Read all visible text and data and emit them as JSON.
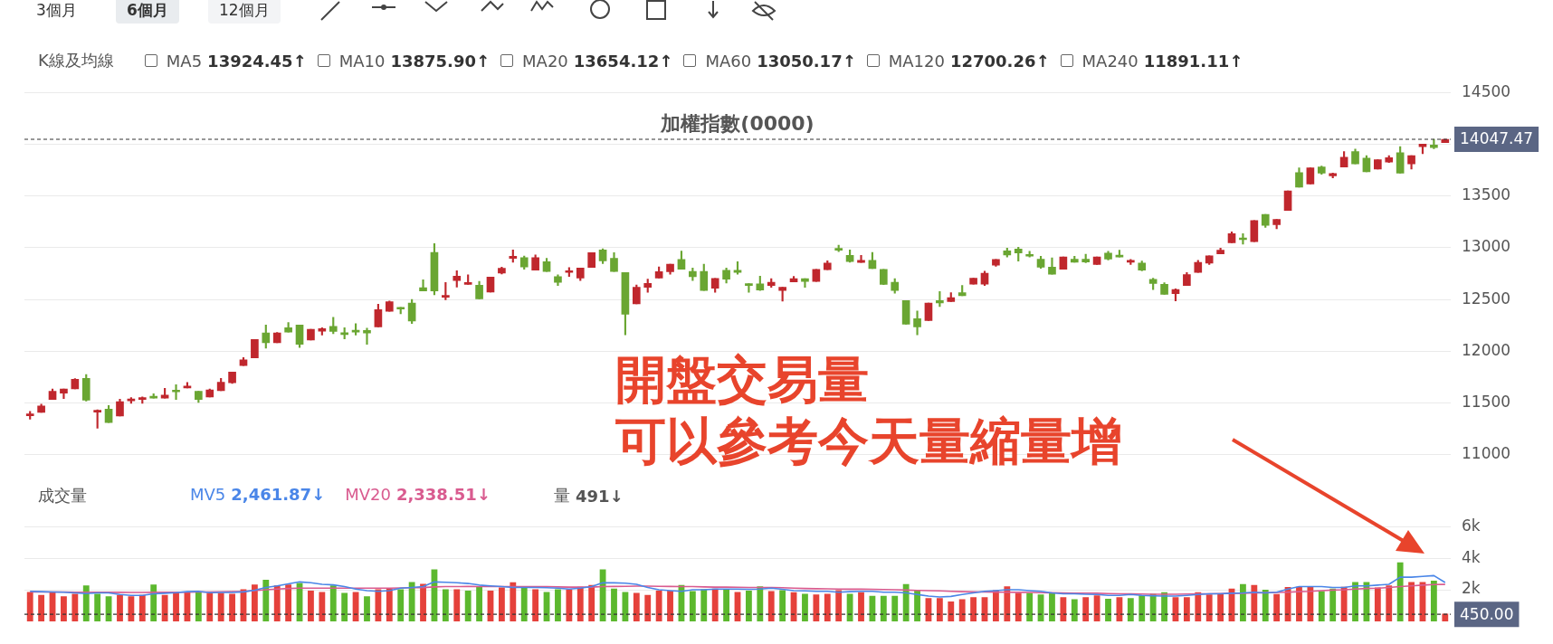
{
  "chart_data": [
    {
      "type": "other",
      "annotations": [
        "3個月",
        "6個月",
        "12個月"
      ]
    },
    {
      "type": "candlestick",
      "title": "加權指數(0000)",
      "annotations": [
        "K線及均線",
        "MA5 13924.45↑",
        "MA10 13875.90↑",
        "MA20 13654.12↑",
        "MA60 13050.17↑",
        "MA120 12700.26↑",
        "MA240 11891.11↑",
        "開盤交易量",
        "可以參考今天量縮量增"
      ],
      "categories": [
        null,
        null,
        null,
        null,
        null,
        null,
        null,
        null,
        null,
        null,
        null,
        null,
        null,
        null,
        null,
        null,
        null,
        null,
        null,
        null,
        null,
        null,
        null,
        null,
        null,
        null,
        null,
        null,
        null,
        null,
        null,
        null,
        null,
        null,
        null,
        null,
        null,
        null,
        null,
        null,
        null,
        null,
        null,
        null,
        null,
        null,
        null,
        null,
        null,
        null,
        null,
        null,
        null,
        null,
        null,
        null,
        null,
        null,
        null,
        null,
        null,
        null,
        null,
        null,
        null,
        null,
        null,
        null,
        null,
        null,
        null,
        null,
        null,
        null,
        null,
        null,
        null,
        null,
        null,
        null,
        null,
        null,
        null,
        null,
        null,
        null,
        null,
        null,
        null,
        null,
        null,
        null,
        null,
        null,
        null,
        null,
        null,
        null,
        null,
        null,
        null,
        null,
        null,
        null,
        null,
        null,
        null,
        null,
        null,
        null,
        null,
        null,
        null,
        null,
        null,
        null,
        null,
        null,
        null,
        null,
        null,
        null,
        null,
        null,
        null,
        null,
        null
      ],
      "ohlc": [
        [
          11377,
          11420,
          11343,
          11389
        ],
        [
          11410,
          11488,
          11410,
          11472
        ],
        [
          11534,
          11636,
          11534,
          11614
        ],
        [
          11596,
          11636,
          11543,
          11636
        ],
        [
          11636,
          11735,
          11636,
          11729
        ],
        [
          11738,
          11775,
          11519,
          11528
        ],
        [
          11411,
          11435,
          11256,
          11429
        ],
        [
          11442,
          11475,
          11312,
          11312
        ],
        [
          11374,
          11537,
          11374,
          11513
        ],
        [
          11522,
          11553,
          11497,
          11540
        ],
        [
          11534,
          11559,
          11497,
          11553
        ],
        [
          11565,
          11590,
          11547,
          11547
        ],
        [
          11547,
          11642,
          11547,
          11577
        ],
        [
          11620,
          11676,
          11534,
          11608
        ],
        [
          11645,
          11698,
          11645,
          11663
        ],
        [
          11614,
          11614,
          11506,
          11534
        ],
        [
          11559,
          11636,
          11559,
          11627
        ],
        [
          11620,
          11738,
          11620,
          11701
        ],
        [
          11695,
          11800,
          11690,
          11800
        ],
        [
          11861,
          11938,
          11861,
          11917
        ],
        [
          11935,
          12114,
          11935,
          12114
        ],
        [
          12176,
          12253,
          12031,
          12083
        ],
        [
          12083,
          12182,
          12083,
          12176
        ],
        [
          12228,
          12278,
          12185,
          12185
        ],
        [
          12253,
          12253,
          12037,
          12068
        ],
        [
          12108,
          12213,
          12108,
          12213
        ],
        [
          12194,
          12228,
          12157,
          12219
        ],
        [
          12241,
          12327,
          12170,
          12191
        ],
        [
          12179,
          12228,
          12120,
          12161
        ],
        [
          12204,
          12266,
          12157,
          12185
        ],
        [
          12201,
          12222,
          12068,
          12176
        ],
        [
          12235,
          12454,
          12235,
          12401
        ],
        [
          12386,
          12485,
          12386,
          12478
        ],
        [
          12423,
          12423,
          12361,
          12407
        ],
        [
          12466,
          12500,
          12269,
          12293
        ],
        [
          12614,
          12691,
          12583,
          12583
        ],
        [
          12954,
          13040,
          12546,
          12583
        ],
        [
          12522,
          12664,
          12497,
          12540
        ],
        [
          12682,
          12778,
          12620,
          12725
        ],
        [
          12645,
          12738,
          12645,
          12664
        ],
        [
          12639,
          12676,
          12506,
          12506
        ],
        [
          12571,
          12716,
          12571,
          12716
        ],
        [
          12756,
          12812,
          12746,
          12802
        ],
        [
          12898,
          12978,
          12861,
          12917
        ],
        [
          12904,
          12920,
          12793,
          12815
        ],
        [
          12783,
          12930,
          12783,
          12904
        ],
        [
          12866,
          12898,
          12771,
          12771
        ],
        [
          12720,
          12739,
          12634,
          12666
        ],
        [
          12761,
          12809,
          12723,
          12777
        ],
        [
          12707,
          12803,
          12682,
          12803
        ],
        [
          12809,
          12952,
          12809,
          12952
        ],
        [
          12978,
          12990,
          12847,
          12873
        ],
        [
          12898,
          12952,
          12771,
          12771
        ],
        [
          12761,
          12761,
          12159,
          12357
        ],
        [
          12459,
          12640,
          12459,
          12618
        ],
        [
          12618,
          12697,
          12570,
          12656
        ],
        [
          12707,
          12815,
          12707,
          12768
        ],
        [
          12768,
          12841,
          12745,
          12841
        ],
        [
          12888,
          12968,
          12793,
          12793
        ],
        [
          12771,
          12803,
          12682,
          12720
        ],
        [
          12771,
          12841,
          12586,
          12586
        ],
        [
          12608,
          12704,
          12570,
          12704
        ],
        [
          12783,
          12803,
          12659,
          12697
        ],
        [
          12783,
          12866,
          12745,
          12761
        ],
        [
          12653,
          12653,
          12570,
          12634
        ],
        [
          12650,
          12726,
          12586,
          12592
        ],
        [
          12634,
          12701,
          12618,
          12666
        ],
        [
          12586,
          12618,
          12484,
          12618
        ],
        [
          12669,
          12723,
          12669,
          12701
        ],
        [
          12701,
          12701,
          12618,
          12675
        ],
        [
          12675,
          12790,
          12675,
          12790
        ],
        [
          12787,
          12873,
          12787,
          12853
        ],
        [
          12994,
          13025,
          12962,
          12975
        ],
        [
          12927,
          12978,
          12860,
          12866
        ],
        [
          12857,
          12927,
          12857,
          12879
        ],
        [
          12879,
          12955,
          12799,
          12799
        ],
        [
          12790,
          12790,
          12643,
          12646
        ],
        [
          12666,
          12701,
          12560,
          12586
        ],
        [
          12490,
          12490,
          12261,
          12261
        ],
        [
          12315,
          12388,
          12159,
          12236
        ],
        [
          12296,
          12465,
          12296,
          12465
        ],
        [
          12490,
          12577,
          12432,
          12467
        ],
        [
          12479,
          12565,
          12479,
          12518
        ],
        [
          12565,
          12635,
          12537,
          12537
        ],
        [
          12647,
          12706,
          12647,
          12706
        ],
        [
          12647,
          12773,
          12635,
          12753
        ],
        [
          12831,
          12886,
          12820,
          12886
        ],
        [
          12969,
          12996,
          12910,
          12929
        ],
        [
          12988,
          13004,
          12871,
          12949
        ],
        [
          12929,
          12965,
          12910,
          12918
        ],
        [
          12890,
          12918,
          12800,
          12812
        ],
        [
          12812,
          12902,
          12745,
          12745
        ],
        [
          12792,
          12910,
          12792,
          12910
        ],
        [
          12890,
          12918,
          12859,
          12859
        ],
        [
          12890,
          12937,
          12855,
          12863
        ],
        [
          12839,
          12910,
          12839,
          12910
        ],
        [
          12949,
          12965,
          12882,
          12890
        ],
        [
          12922,
          12976,
          12910,
          12910
        ],
        [
          12859,
          12886,
          12839,
          12878
        ],
        [
          12851,
          12871,
          12776,
          12784
        ],
        [
          12694,
          12706,
          12596,
          12655
        ],
        [
          12647,
          12663,
          12549,
          12549
        ],
        [
          12557,
          12604,
          12486,
          12596
        ],
        [
          12635,
          12761,
          12635,
          12741
        ],
        [
          12761,
          12878,
          12761,
          12859
        ],
        [
          12851,
          12922,
          12839,
          12922
        ],
        [
          12941,
          12996,
          12941,
          12976
        ],
        [
          13047,
          13153,
          13047,
          13137
        ],
        [
          13090,
          13137,
          13035,
          13078
        ],
        [
          13059,
          13263,
          13059,
          13263
        ],
        [
          13321,
          13321,
          13196,
          13216
        ],
        [
          13223,
          13274,
          13184,
          13274
        ],
        [
          13361,
          13549,
          13361,
          13549
        ],
        [
          13725,
          13772,
          13584,
          13584
        ],
        [
          13615,
          13772,
          13615,
          13772
        ],
        [
          13780,
          13788,
          13709,
          13721
        ],
        [
          13694,
          13721,
          13674,
          13717
        ],
        [
          13780,
          13929,
          13780,
          13874
        ],
        [
          13929,
          13953,
          13811,
          13811
        ],
        [
          13866,
          13890,
          13733,
          13733
        ],
        [
          13760,
          13851,
          13760,
          13851
        ],
        [
          13827,
          13890,
          13823,
          13870
        ],
        [
          13917,
          13976,
          13721,
          13721
        ],
        [
          13811,
          13890,
          13760,
          13890
        ],
        [
          13976,
          14000,
          13909,
          14000
        ],
        [
          13992,
          14047,
          13957,
          13968
        ],
        [
          14016,
          14047.47,
          14016,
          14047.47
        ]
      ],
      "colors": [
        "#c0272d",
        "#c0272d",
        "#c0272d",
        "#c0272d",
        "#c0272d",
        "#6aa632",
        "#c0272d",
        "#6aa632",
        "#c0272d",
        "#c0272d",
        "#c0272d",
        "#6aa632",
        "#c0272d",
        "#6aa632",
        "#c0272d",
        "#6aa632",
        "#c0272d",
        "#c0272d",
        "#c0272d",
        "#c0272d",
        "#c0272d",
        "#6aa632",
        "#c0272d",
        "#6aa632",
        "#6aa632",
        "#c0272d",
        "#c0272d",
        "#6aa632",
        "#6aa632",
        "#6aa632",
        "#6aa632",
        "#c0272d",
        "#c0272d",
        "#6aa632",
        "#6aa632",
        "#6aa632",
        "#6aa632",
        "#c0272d",
        "#c0272d",
        "#c0272d",
        "#6aa632",
        "#c0272d",
        "#c0272d",
        "#c0272d",
        "#6aa632",
        "#c0272d",
        "#6aa632",
        "#6aa632",
        "#c0272d",
        "#c0272d",
        "#c0272d",
        "#6aa632",
        "#6aa632",
        "#6aa632",
        "#c0272d",
        "#c0272d",
        "#c0272d",
        "#c0272d",
        "#6aa632",
        "#6aa632",
        "#6aa632",
        "#c0272d",
        "#6aa632",
        "#6aa632",
        "#6aa632",
        "#6aa632",
        "#c0272d",
        "#c0272d",
        "#c0272d",
        "#6aa632",
        "#c0272d",
        "#c0272d",
        "#6aa632",
        "#6aa632",
        "#c0272d",
        "#6aa632",
        "#6aa632",
        "#6aa632",
        "#6aa632",
        "#6aa632",
        "#c0272d",
        "#6aa632",
        "#c0272d",
        "#6aa632",
        "#c0272d",
        "#c0272d",
        "#c0272d",
        "#6aa632",
        "#6aa632",
        "#6aa632",
        "#6aa632",
        "#6aa632",
        "#c0272d",
        "#6aa632",
        "#6aa632",
        "#c0272d",
        "#6aa632",
        "#6aa632",
        "#c0272d",
        "#6aa632",
        "#6aa632",
        "#6aa632",
        "#c0272d",
        "#c0272d",
        "#c0272d",
        "#c0272d",
        "#c0272d",
        "#c0272d",
        "#6aa632",
        "#c0272d",
        "#6aa632",
        "#c0272d",
        "#c0272d",
        "#6aa632",
        "#c0272d",
        "#6aa632",
        "#c0272d",
        "#c0272d",
        "#6aa632",
        "#6aa632",
        "#c0272d",
        "#c0272d",
        "#6aa632",
        "#c0272d",
        "#c0272d",
        "#6aa632",
        "#c0272d"
      ],
      "ylim": [
        11000,
        14500
      ],
      "yticks": [
        11000,
        11500,
        12000,
        12500,
        13000,
        13500,
        {
          "value": 14000,
          "label": null
        },
        14500
      ],
      "grid": "y",
      "tick_labels": "y",
      "ref_lines": [
        {
          "axis": "y",
          "value": 14047.47,
          "label": "14047.47",
          "line_style": "dashed"
        }
      ]
    },
    {
      "type": "bar",
      "title": "成交量",
      "legend": "top",
      "annotations": [
        "量 491↓"
      ],
      "categories": [
        null,
        null,
        null,
        null,
        null,
        null,
        null,
        null,
        null,
        null,
        null,
        null,
        null,
        null,
        null,
        null,
        null,
        null,
        null,
        null,
        null,
        null,
        null,
        null,
        null,
        null,
        null,
        null,
        null,
        null,
        null,
        null,
        null,
        null,
        null,
        null,
        null,
        null,
        null,
        null,
        null,
        null,
        null,
        null,
        null,
        null,
        null,
        null,
        null,
        null,
        null,
        null,
        null,
        null,
        null,
        null,
        null,
        null,
        null,
        null,
        null,
        null,
        null,
        null,
        null,
        null,
        null,
        null,
        null,
        null,
        null,
        null,
        null,
        null,
        null,
        null,
        null,
        null,
        null,
        null,
        null,
        null,
        null,
        null,
        null,
        null,
        null,
        null,
        null,
        null,
        null,
        null,
        null,
        null,
        null,
        null,
        null,
        null,
        null,
        null,
        null,
        null,
        null,
        null,
        null,
        null,
        null,
        null,
        null,
        null,
        null,
        null,
        null,
        null,
        null,
        null,
        null,
        null,
        null,
        null,
        null,
        null,
        null,
        null,
        null,
        null,
        null
      ],
      "series": [
        {
          "type": "bar",
          "values": [
            1860,
            1670,
            1860,
            1590,
            1750,
            2270,
            1750,
            1590,
            1670,
            1590,
            1670,
            2330,
            1670,
            1860,
            1860,
            1860,
            1810,
            1810,
            1750,
            2030,
            2330,
            2630,
            2270,
            2330,
            2440,
            1950,
            1860,
            2270,
            1810,
            1860,
            1590,
            2030,
            2080,
            2030,
            2490,
            2380,
            3290,
            2030,
            2030,
            1950,
            2190,
            1950,
            2140,
            2470,
            2220,
            2030,
            1860,
            2030,
            2030,
            2190,
            2300,
            3290,
            2080,
            1860,
            1810,
            1670,
            1950,
            1950,
            2300,
            1920,
            2030,
            2080,
            2030,
            1860,
            1950,
            2220,
            1920,
            1970,
            1840,
            1750,
            1700,
            1750,
            1970,
            1750,
            1840,
            1620,
            1620,
            1620,
            2360,
            1970,
            1480,
            1480,
            1260,
            1400,
            1530,
            1530,
            1970,
            2220,
            1810,
            1810,
            1700,
            1810,
            1530,
            1400,
            1530,
            1640,
            1430,
            1530,
            1480,
            1640,
            1750,
            1840,
            1530,
            1530,
            1840,
            1700,
            1730,
            2080,
            2360,
            2300,
            2000,
            1730,
            2170,
            2190,
            2190,
            1920,
            2080,
            2190,
            2490,
            2490,
            2140,
            2270,
            3730,
            2490,
            2490,
            2580,
            490
          ],
          "colors": [
            "#e5413b",
            "#e5413b",
            "#e5413b",
            "#e5413b",
            "#e5413b",
            "#5cb82e",
            "#5cb82e",
            "#5cb82e",
            "#e5413b",
            "#e5413b",
            "#e5413b",
            "#5cb82e",
            "#e5413b",
            "#e5413b",
            "#e5413b",
            "#5cb82e",
            "#e5413b",
            "#e5413b",
            "#e5413b",
            "#e5413b",
            "#e5413b",
            "#5cb82e",
            "#e5413b",
            "#e5413b",
            "#5cb82e",
            "#e5413b",
            "#e5413b",
            "#5cb82e",
            "#5cb82e",
            "#e5413b",
            "#5cb82e",
            "#e5413b",
            "#e5413b",
            "#5cb82e",
            "#5cb82e",
            "#e5413b",
            "#5cb82e",
            "#5cb82e",
            "#e5413b",
            "#5cb82e",
            "#5cb82e",
            "#e5413b",
            "#e5413b",
            "#e5413b",
            "#5cb82e",
            "#e5413b",
            "#5cb82e",
            "#5cb82e",
            "#e5413b",
            "#e5413b",
            "#e5413b",
            "#5cb82e",
            "#5cb82e",
            "#5cb82e",
            "#e5413b",
            "#e5413b",
            "#e5413b",
            "#e5413b",
            "#5cb82e",
            "#5cb82e",
            "#5cb82e",
            "#e5413b",
            "#5cb82e",
            "#e5413b",
            "#5cb82e",
            "#5cb82e",
            "#e5413b",
            "#5cb82e",
            "#e5413b",
            "#5cb82e",
            "#e5413b",
            "#e5413b",
            "#e5413b",
            "#5cb82e",
            "#e5413b",
            "#5cb82e",
            "#5cb82e",
            "#5cb82e",
            "#5cb82e",
            "#5cb82e",
            "#e5413b",
            "#e5413b",
            "#e5413b",
            "#e5413b",
            "#e5413b",
            "#e5413b",
            "#e5413b",
            "#e5413b",
            "#e5413b",
            "#5cb82e",
            "#5cb82e",
            "#5cb82e",
            "#e5413b",
            "#5cb82e",
            "#e5413b",
            "#e5413b",
            "#5cb82e",
            "#e5413b",
            "#5cb82e",
            "#5cb82e",
            "#5cb82e",
            "#5cb82e",
            "#e5413b",
            "#e5413b",
            "#e5413b",
            "#e5413b",
            "#e5413b",
            "#e5413b",
            "#5cb82e",
            "#e5413b",
            "#5cb82e",
            "#e5413b",
            "#e5413b",
            "#e5413b",
            "#e5413b",
            "#5cb82e",
            "#5cb82e",
            "#e5413b",
            "#5cb82e",
            "#5cb82e",
            "#e5413b",
            "#e5413b",
            "#5cb82e",
            "#e5413b",
            "#e5413b",
            "#5cb82e",
            "#e5413b"
          ]
        },
        {
          "type": "line",
          "name": "MV5 2,461.87↓",
          "color": "#4a86e8",
          "values": [
            1900,
            1880,
            1860,
            1850,
            1800,
            1760,
            1800,
            1800,
            1700,
            1650,
            1650,
            1750,
            1780,
            1820,
            1880,
            1900,
            1820,
            1830,
            1830,
            1870,
            1980,
            2150,
            2250,
            2380,
            2500,
            2450,
            2350,
            2310,
            2200,
            2050,
            1950,
            1900,
            1950,
            2100,
            2150,
            2200,
            2500,
            2480,
            2450,
            2400,
            2300,
            2250,
            2200,
            2150,
            2150,
            2150,
            2130,
            2100,
            2050,
            2100,
            2200,
            2450,
            2440,
            2420,
            2350,
            2150,
            2000,
            1950,
            1900,
            2000,
            2000,
            2050,
            2050,
            2050,
            2030,
            2050,
            2100,
            2030,
            1950,
            1930,
            1900,
            1900,
            1850,
            1880,
            1900,
            1900,
            1850,
            1850,
            1800,
            1700,
            1600,
            1550,
            1580,
            1700,
            1800,
            1900,
            1950,
            2000,
            2000,
            1950,
            1900,
            1800,
            1750,
            1750,
            1720,
            1700,
            1650,
            1650,
            1700,
            1650,
            1620,
            1600,
            1600,
            1650,
            1700,
            1750,
            1750,
            1780,
            1800,
            1850,
            1800,
            1850,
            2050,
            2200,
            2200,
            2200,
            2150,
            2150,
            2250,
            2250,
            2300,
            2350,
            2800,
            2800,
            2850,
            2900,
            2460
          ]
        },
        {
          "type": "line",
          "name": "MV20 2,338.51↓",
          "color": "#d95b8f",
          "values": [
            1860,
            1860,
            1860,
            1860,
            1850,
            1850,
            1850,
            1840,
            1840,
            1830,
            1830,
            1840,
            1840,
            1850,
            1850,
            1860,
            1860,
            1870,
            1880,
            1900,
            1950,
            2000,
            2050,
            2080,
            2100,
            2100,
            2100,
            2100,
            2100,
            2100,
            2100,
            2100,
            2100,
            2120,
            2130,
            2140,
            2180,
            2200,
            2200,
            2210,
            2200,
            2200,
            2200,
            2200,
            2200,
            2200,
            2200,
            2180,
            2170,
            2170,
            2170,
            2200,
            2210,
            2220,
            2230,
            2230,
            2220,
            2210,
            2200,
            2200,
            2180,
            2170,
            2170,
            2160,
            2150,
            2150,
            2150,
            2130,
            2100,
            2080,
            2070,
            2060,
            2050,
            2040,
            2040,
            2030,
            2020,
            2000,
            1980,
            1960,
            1950,
            1930,
            1900,
            1880,
            1870,
            1860,
            1850,
            1850,
            1840,
            1830,
            1820,
            1810,
            1800,
            1790,
            1790,
            1780,
            1760,
            1750,
            1740,
            1730,
            1720,
            1720,
            1720,
            1730,
            1740,
            1750,
            1760,
            1780,
            1780,
            1800,
            1810,
            1830,
            1850,
            1880,
            1900,
            1950,
            1980,
            2000,
            2050,
            2080,
            2100,
            2150,
            2200,
            2250,
            2300,
            2330,
            2340
          ]
        }
      ],
      "ylim": [
        0,
        6000
      ],
      "yticks": [
        {
          "value": 2000,
          "label": "2k"
        },
        {
          "value": 4000,
          "label": "4k"
        },
        {
          "value": 6000,
          "label": "6k"
        }
      ],
      "grid": "y",
      "tick_labels": "y",
      "ref_lines": [
        {
          "axis": "y",
          "value": 450,
          "label": "450.00",
          "line_style": "dashed"
        }
      ]
    }
  ]
}
